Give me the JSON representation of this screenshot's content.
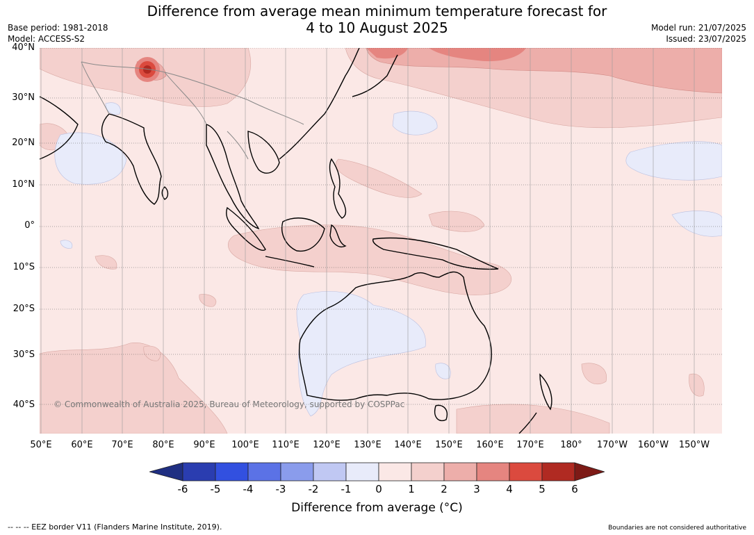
{
  "title_line1": "Difference from average mean minimum temperature forecast for",
  "title_line2": "4 to 10 August 2025",
  "meta_left": [
    "Base period: 1981-2018",
    "Model: ACCESS-S2"
  ],
  "meta_right": [
    "Model run: 21/07/2025",
    "Issued: 23/07/2025"
  ],
  "lat_labels": [
    "40°N",
    "30°N",
    "20°N",
    "10°N",
    "0°",
    "10°S",
    "20°S",
    "30°S",
    "40°S"
  ],
  "lon_labels": [
    "50°E",
    "60°E",
    "70°E",
    "80°E",
    "90°E",
    "100°E",
    "110°E",
    "120°E",
    "130°E",
    "140°E",
    "150°E",
    "160°E",
    "170°E",
    "180°",
    "170°W",
    "160°W",
    "150°W"
  ],
  "copyright": "© Commonwealth of Australia 2025, Bureau of Meteorology, supported by COSPPac",
  "colorbar": {
    "ticks": [
      "-6",
      "-5",
      "-4",
      "-3",
      "-2",
      "-1",
      "0",
      "1",
      "2",
      "3",
      "4",
      "5",
      "6"
    ],
    "colors": [
      "#1f2f82",
      "#2a3db0",
      "#3250e0",
      "#5b72e6",
      "#8a9cec",
      "#c0c8f3",
      "#e8ebfa",
      "#fbe8e6",
      "#f4d0cd",
      "#edaeaa",
      "#e58580",
      "#db4a3e",
      "#b02a22",
      "#7d1a16"
    ],
    "label": "Difference from average (°C)"
  },
  "footer_left": "-- -- -- EEZ border V11 (Flanders Marine Institute, 2019).",
  "footer_right": "Boundaries are not considered authoritative",
  "map_colors": {
    "background": "#fbe8e6",
    "warm_1_2": "#f4d0cd",
    "warm_2_3": "#edaeaa",
    "warm_3_4": "#e58580",
    "hot": "#b02a22",
    "cool": "#e8ebfa",
    "coast": "#000000",
    "border": "#888888",
    "grid": "#555555"
  }
}
